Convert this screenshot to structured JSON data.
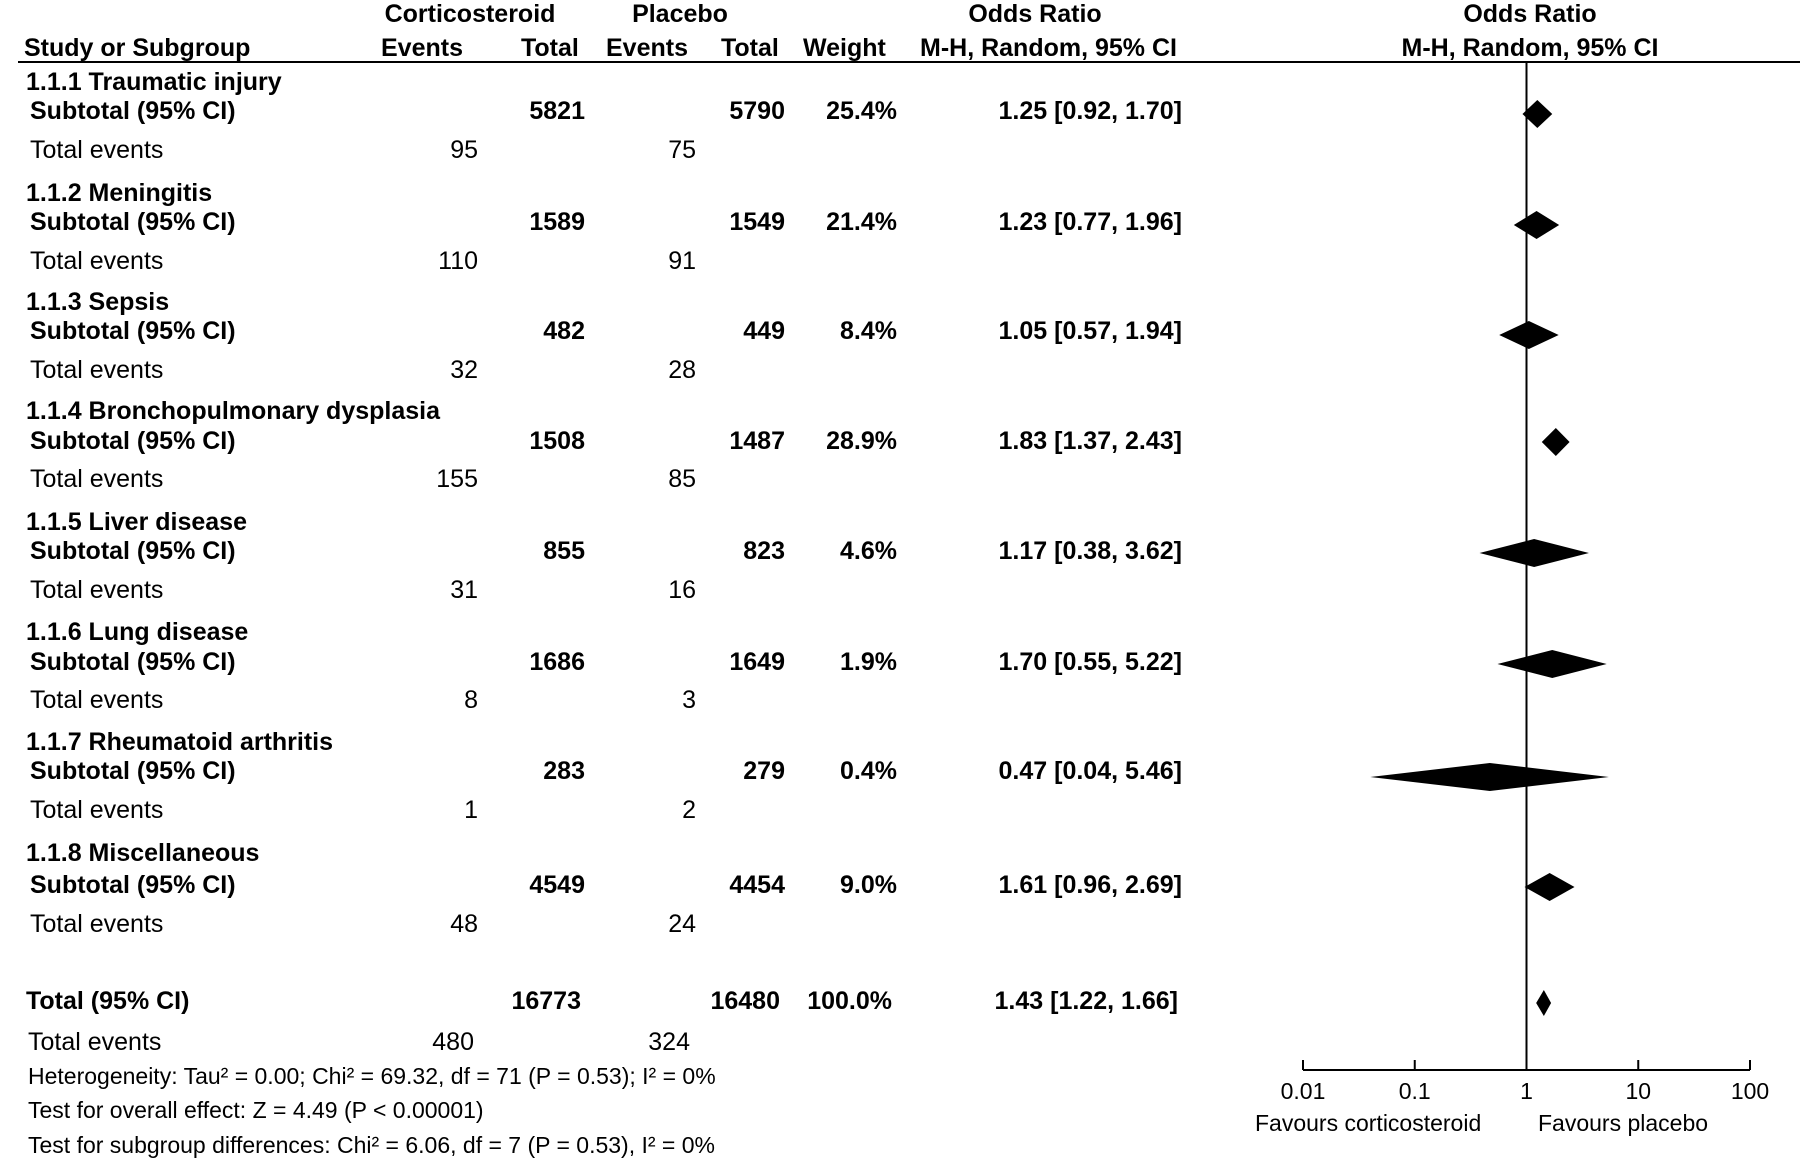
{
  "header": {
    "group1": "Corticosteroid",
    "group2": "Placebo",
    "or_top": "Odds Ratio",
    "study": "Study or Subgroup",
    "events1": "Events",
    "total1": "Total",
    "events2": "Events",
    "total2": "Total",
    "weight": "Weight",
    "method": "M-H, Random, 95% CI",
    "plot_top": "Odds Ratio",
    "plot_method": "M-H, Random, 95% CI"
  },
  "subgroups": [
    {
      "name": "1.1.1 Traumatic injury",
      "subtotal_label": "Subtotal (95% CI)",
      "total1": "5821",
      "total2": "5790",
      "weight": "25.4%",
      "ci_text": "1.25 [0.92, 1.70]",
      "events_label": "Total events",
      "events1": "95",
      "events2": "75"
    },
    {
      "name": "1.1.2 Meningitis",
      "subtotal_label": "Subtotal (95% CI)",
      "total1": "1589",
      "total2": "1549",
      "weight": "21.4%",
      "ci_text": "1.23 [0.77, 1.96]",
      "events_label": "Total events",
      "events1": "110",
      "events2": "91"
    },
    {
      "name": "1.1.3 Sepsis",
      "subtotal_label": "Subtotal (95% CI)",
      "total1": "482",
      "total2": "449",
      "weight": "8.4%",
      "ci_text": "1.05 [0.57, 1.94]",
      "events_label": "Total events",
      "events1": "32",
      "events2": "28"
    },
    {
      "name": "1.1.4 Bronchopulmonary dysplasia",
      "subtotal_label": "Subtotal (95% CI)",
      "total1": "1508",
      "total2": "1487",
      "weight": "28.9%",
      "ci_text": "1.83 [1.37, 2.43]",
      "events_label": "Total events",
      "events1": "155",
      "events2": "85"
    },
    {
      "name": "1.1.5 Liver disease",
      "subtotal_label": "Subtotal (95% CI)",
      "total1": "855",
      "total2": "823",
      "weight": "4.6%",
      "ci_text": "1.17 [0.38, 3.62]",
      "events_label": "Total events",
      "events1": "31",
      "events2": "16"
    },
    {
      "name": "1.1.6 Lung disease",
      "subtotal_label": "Subtotal (95% CI)",
      "total1": "1686",
      "total2": "1649",
      "weight": "1.9%",
      "ci_text": "1.70 [0.55, 5.22]",
      "events_label": "Total events",
      "events1": "8",
      "events2": "3"
    },
    {
      "name": "1.1.7 Rheumatoid arthritis",
      "subtotal_label": "Subtotal (95% CI)",
      "total1": "283",
      "total2": "279",
      "weight": "0.4%",
      "ci_text": "0.47 [0.04, 5.46]",
      "events_label": "Total events",
      "events1": "1",
      "events2": "2"
    },
    {
      "name": "1.1.8 Miscellaneous",
      "subtotal_label": "Subtotal (95% CI)",
      "total1": "4549",
      "total2": "4454",
      "weight": "9.0%",
      "ci_text": "1.61 [0.96, 2.69]",
      "events_label": "Total events",
      "events1": "48",
      "events2": "24"
    }
  ],
  "overall": {
    "label": "Total (95% CI)",
    "total1": "16773",
    "total2": "16480",
    "weight": "100.0%",
    "ci_text": "1.43 [1.22, 1.66]",
    "events_label": "Total events",
    "events1": "480",
    "events2": "324"
  },
  "footnotes": {
    "heterogeneity": "Heterogeneity: Tau² = 0.00; Chi² = 69.32, df = 71 (P = 0.53); I² = 0%",
    "overall_effect": "Test for overall effect: Z = 4.49 (P < 0.00001)",
    "subgroup_diff": "Test for subgroup differences: Chi² = 6.06, df = 7 (P = 0.53), I² = 0%"
  },
  "axis": {
    "ticks": [
      "0.01",
      "0.1",
      "1",
      "10",
      "100"
    ],
    "favours_left": "Favours  corticosteroid",
    "favours_right": "Favours placebo"
  },
  "chart_data": {
    "type": "forest",
    "scale": "log",
    "xlim": [
      0.01,
      100
    ],
    "reference_line": 1,
    "x_ticks": [
      0.01,
      0.1,
      1,
      10,
      100
    ],
    "points": [
      {
        "name": "1.1.1 Traumatic injury",
        "or": 1.25,
        "lo": 0.92,
        "hi": 1.7
      },
      {
        "name": "1.1.2 Meningitis",
        "or": 1.23,
        "lo": 0.77,
        "hi": 1.96
      },
      {
        "name": "1.1.3 Sepsis",
        "or": 1.05,
        "lo": 0.57,
        "hi": 1.94
      },
      {
        "name": "1.1.4 Bronchopulmonary dysplasia",
        "or": 1.83,
        "lo": 1.37,
        "hi": 2.43
      },
      {
        "name": "1.1.5 Liver disease",
        "or": 1.17,
        "lo": 0.38,
        "hi": 3.62
      },
      {
        "name": "1.1.6 Lung disease",
        "or": 1.7,
        "lo": 0.55,
        "hi": 5.22
      },
      {
        "name": "1.1.7 Rheumatoid arthritis",
        "or": 0.47,
        "lo": 0.04,
        "hi": 5.46
      },
      {
        "name": "1.1.8 Miscellaneous",
        "or": 1.61,
        "lo": 0.96,
        "hi": 2.69
      },
      {
        "name": "Total (95% CI)",
        "or": 1.43,
        "lo": 1.22,
        "hi": 1.66
      }
    ]
  }
}
